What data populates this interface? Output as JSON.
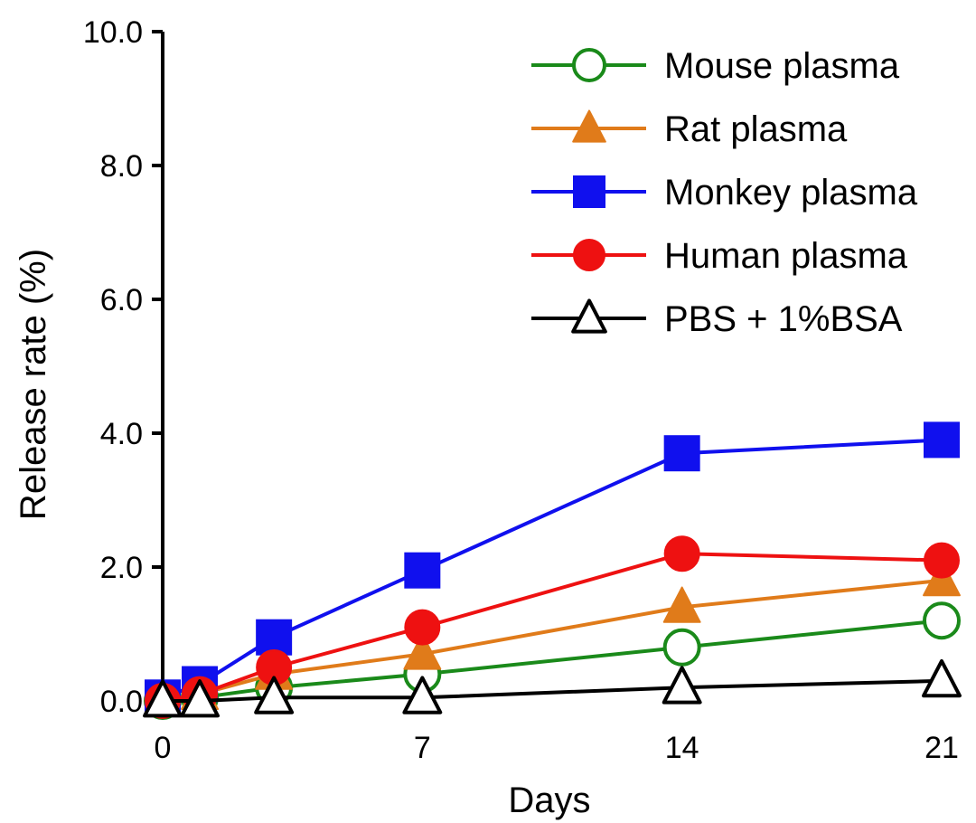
{
  "chart_data": {
    "type": "line",
    "title": "",
    "xlabel": "Days",
    "ylabel": "Release rate (%)",
    "xlim": [
      0,
      21
    ],
    "ylim": [
      0,
      10
    ],
    "xticks": [
      0,
      7,
      14,
      21
    ],
    "xtick_labels": [
      "0",
      "7",
      "14",
      "21"
    ],
    "yticks": [
      0,
      2,
      4,
      6,
      8,
      10
    ],
    "ytick_labels": [
      "0.0",
      "2.0",
      "4.0",
      "6.0",
      "8.0",
      "10.0"
    ],
    "grid": false,
    "legend_position": "top-right",
    "x": [
      0,
      1,
      3,
      7,
      14,
      21
    ],
    "series": [
      {
        "name": "Mouse plasma",
        "color": "#1a8a1a",
        "marker": "open-circle",
        "values": [
          0.0,
          0.05,
          0.2,
          0.4,
          0.8,
          1.2
        ]
      },
      {
        "name": "Rat plasma",
        "color": "#e07b1a",
        "marker": "filled-triangle",
        "values": [
          0.0,
          0.1,
          0.4,
          0.7,
          1.4,
          1.8
        ]
      },
      {
        "name": "Monkey plasma",
        "color": "#1010ee",
        "marker": "filled-square",
        "values": [
          0.05,
          0.25,
          0.95,
          1.95,
          3.7,
          3.9
        ]
      },
      {
        "name": "Human plasma",
        "color": "#ee1111",
        "marker": "filled-circle",
        "values": [
          0.0,
          0.1,
          0.5,
          1.1,
          2.2,
          2.1
        ]
      },
      {
        "name": "PBS + 1%BSA",
        "color": "#000000",
        "marker": "open-triangle",
        "values": [
          0.0,
          0.0,
          0.05,
          0.05,
          0.2,
          0.3
        ]
      }
    ]
  }
}
